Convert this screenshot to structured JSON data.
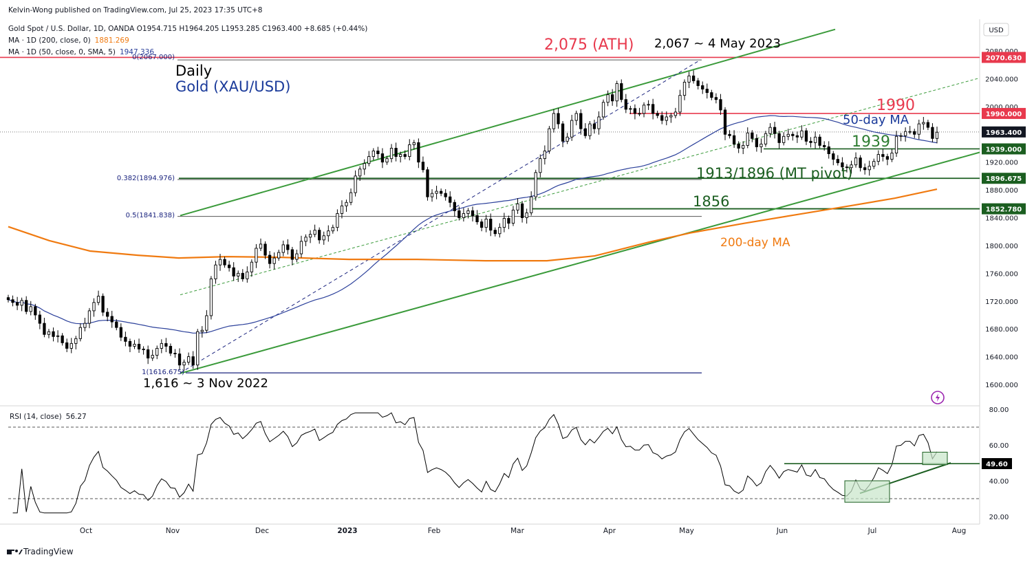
{
  "header": {
    "published": "Kelvin-Wong published on TradingView.com, Jul 25, 2023 17:35 UTC+8",
    "symbol_line": "Gold Spot / U.S. Dollar, 1D, OANDA  O1954.715  H1964.205  L1953.285  C1963.400  +8.685 (+0.44%)",
    "ma200_label": "MA · 1D (200, close, 0)",
    "ma200_value": "1881.269",
    "ma50_label": "MA · 1D (50, close, 0, SMA, 5)",
    "ma50_value": "1947.336",
    "currency": "USD"
  },
  "colors": {
    "candle": "#000000",
    "channel": "#3a9a3a",
    "ma50": "#2a3f9a",
    "ma200": "#f07a10",
    "resistance": "#e8394d",
    "support": "#1b5e20",
    "fib": "#1a237e",
    "label_bg": "#000000"
  },
  "annotations": {
    "daily": "Daily",
    "instrument": "Gold (XAU/USD)",
    "ath": "2,075 (ATH)",
    "may_high": "2,067 ~ 4 May 2023",
    "nov_low": "1,616 ~ 3 Nov 2022",
    "lvl_1990": "1990",
    "ma50": "50-day MA",
    "lvl_1939": "1939",
    "pivot": "1913/1896 (MT pivot)",
    "lvl_1856": "1856",
    "ma200": "200-day MA"
  },
  "fib": {
    "f0": "0(2067.000)",
    "f382": "0.382(1894.976)",
    "f50": "0.5(1841.838)",
    "f1": "1(1616.675)"
  },
  "price_labels": {
    "l2070": "2070.630",
    "l1990": "1990.000",
    "l1963": "1963.400",
    "l1939": "1939.000",
    "l1896": "1896.675",
    "l1852": "1852.780"
  },
  "rsi": {
    "label": "RSI (14, close)",
    "value": "56.27",
    "label_4960": "49.60"
  },
  "footer": {
    "brand": "TradingView"
  },
  "chart_data": {
    "type": "candlestick",
    "title": "Gold Spot / U.S. Dollar, 1D, OANDA",
    "y_axis_ticks": [
      "2080.000",
      "2040.000",
      "2000.000",
      "1960.000",
      "1920.000",
      "1880.000",
      "1840.000",
      "1800.000",
      "1760.000",
      "1720.000",
      "1680.000",
      "1640.000",
      "1600.000"
    ],
    "x_axis_ticks": [
      "Oct",
      "Nov",
      "Dec",
      "2023",
      "Feb",
      "Mar",
      "Apr",
      "May",
      "Jun",
      "Jul",
      "Aug"
    ],
    "rsi_axis_ticks": [
      "80.00",
      "60.00",
      "40.00",
      "20.00"
    ],
    "ylim": [
      1582,
      2096
    ],
    "horizontal_levels": [
      2070.63,
      1990,
      1963.4,
      1939,
      1896.675,
      1852.78
    ],
    "fib_levels": [
      {
        "ratio": 0,
        "price": 2067.0
      },
      {
        "ratio": 0.382,
        "price": 1894.976
      },
      {
        "ratio": 0.5,
        "price": 1841.838
      },
      {
        "ratio": 1,
        "price": 1616.675
      }
    ],
    "close": [
      1722,
      1718,
      1714,
      1721,
      1705,
      1712,
      1700,
      1688,
      1672,
      1676,
      1669,
      1670,
      1660,
      1652,
      1659,
      1666,
      1682,
      1688,
      1706,
      1718,
      1727,
      1704,
      1698,
      1690,
      1682,
      1668,
      1662,
      1655,
      1658,
      1651,
      1650,
      1638,
      1642,
      1652,
      1659,
      1655,
      1645,
      1644,
      1628,
      1632,
      1640,
      1628,
      1676,
      1678,
      1699,
      1752,
      1772,
      1780,
      1772,
      1768,
      1756,
      1760,
      1752,
      1762,
      1776,
      1796,
      1802,
      1786,
      1774,
      1782,
      1790,
      1801,
      1794,
      1780,
      1788,
      1806,
      1812,
      1816,
      1822,
      1808,
      1814,
      1821,
      1826,
      1846,
      1857,
      1862,
      1876,
      1900,
      1910,
      1918,
      1928,
      1936,
      1932,
      1920,
      1925,
      1940,
      1928,
      1931,
      1928,
      1945,
      1948,
      1920,
      1909,
      1870,
      1875,
      1878,
      1875,
      1870,
      1862,
      1850,
      1840,
      1846,
      1850,
      1843,
      1834,
      1826,
      1838,
      1822,
      1817,
      1826,
      1839,
      1832,
      1851,
      1860,
      1840,
      1847,
      1870,
      1905,
      1925,
      1936,
      1968,
      1990,
      1975,
      1950,
      1956,
      1980,
      1990,
      1968,
      1958,
      1975,
      1968,
      1985,
      2006,
      2017,
      2008,
      2033,
      2010,
      1996,
      1997,
      1990,
      1990,
      2002,
      2003,
      1990,
      1987,
      1980,
      1985,
      1987,
      1992,
      2016,
      2035,
      2044,
      2037,
      2030,
      2025,
      2020,
      2013,
      2010,
      1995,
      1960,
      1958,
      1946,
      1940,
      1944,
      1962,
      1954,
      1942,
      1946,
      1961,
      1970,
      1961,
      1948,
      1957,
      1960,
      1958,
      1956,
      1965,
      1950,
      1948,
      1956,
      1944,
      1942,
      1932,
      1924,
      1919,
      1913,
      1912,
      1916,
      1926,
      1912,
      1909,
      1914,
      1921,
      1931,
      1928,
      1924,
      1933,
      1957,
      1958,
      1964,
      1964,
      1960,
      1975,
      1977,
      1970,
      1954,
      1963
    ]
  }
}
